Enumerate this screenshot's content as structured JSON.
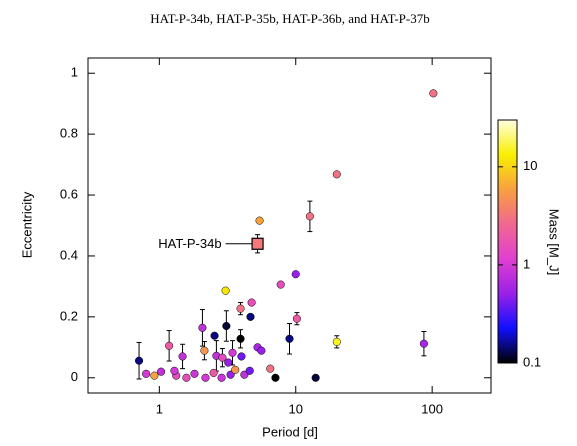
{
  "chart_data": {
    "type": "scatter",
    "title": "HAT-P-34b, HAT-P-35b, HAT-P-36b, and HAT-P-37b",
    "x_label": "Period [d]",
    "y_label": "Eccentricity",
    "colorbar_label": "Mass [M_J]",
    "log_x": true,
    "log_color": true,
    "xlim": [
      0.3,
      270
    ],
    "xticks": [
      1,
      10,
      100
    ],
    "ylim": [
      -0.05,
      1.05
    ],
    "yticks": [
      0,
      0.2,
      0.4,
      0.6,
      0.8,
      1
    ],
    "clim": [
      0.1,
      30
    ],
    "cticks": [
      0.1,
      1,
      10
    ],
    "colormap": [
      "#000000",
      "#1010ff",
      "#9b20e8",
      "#e040d0",
      "#f06890",
      "#f8a040",
      "#f8f000",
      "#ffffe0"
    ],
    "x": [
      102,
      20,
      12.7,
      5.43,
      10,
      7.76,
      3.06,
      4.75,
      3.94,
      4.66,
      10.2,
      2.07,
      3.1,
      2.54,
      3.94,
      9.0,
      20,
      87,
      1.18,
      5.25,
      5.6,
      2.14,
      0.71,
      1.48,
      2.62,
      3.44,
      4.0,
      6.5,
      7.1,
      14,
      0.8,
      1.03,
      0.92,
      1.33,
      1.81,
      1.58,
      2.18,
      2.5,
      2.86,
      3.33,
      3.6,
      4.2,
      2.9,
      3.2,
      4.6,
      1.29
    ],
    "values": [
      0.934,
      0.668,
      0.53,
      0.516,
      0.34,
      0.306,
      0.286,
      0.247,
      0.227,
      0.2,
      0.194,
      0.164,
      0.17,
      0.138,
      0.128,
      0.128,
      0.118,
      0.112,
      0.105,
      0.1,
      0.089,
      0.089,
      0.056,
      0.07,
      0.072,
      0.082,
      0.07,
      0.03,
      0,
      0,
      0.013,
      0.02,
      0.007,
      0.007,
      0.013,
      0,
      0,
      0.016,
      0,
      0.01,
      0.026,
      0.01,
      0.066,
      0.05,
      0.023,
      0.023
    ],
    "mass": [
      3,
      3,
      3,
      6,
      0.5,
      1.5,
      12,
      1.5,
      3,
      0.15,
      2,
      0.8,
      0.12,
      0.15,
      0.1,
      0.15,
      15,
      0.6,
      2,
      0.6,
      0.5,
      5,
      0.15,
      0.8,
      0.8,
      1,
      0.4,
      3,
      0.1,
      0.12,
      1,
      0.8,
      6,
      1.5,
      0.9,
      1.5,
      1,
      2,
      0.9,
      0.5,
      5,
      0.8,
      1.5,
      0.5,
      0.4,
      1
    ],
    "errors": [
      null,
      null,
      0.05,
      null,
      null,
      null,
      null,
      null,
      0.02,
      null,
      0.02,
      0.06,
      0.05,
      null,
      0.03,
      0.05,
      0.02,
      0.04,
      0.05,
      null,
      null,
      0.03,
      0.06,
      0.04,
      0.05,
      0.04,
      null,
      null,
      null,
      null,
      null,
      null,
      null,
      null,
      null,
      null,
      null,
      null,
      null,
      null,
      null,
      null,
      0.03,
      null,
      null,
      null
    ],
    "highlight": {
      "label": "HAT-P-34b",
      "x": 5.25,
      "value": 0.44,
      "mass": 3.3,
      "error": 0.03
    }
  }
}
